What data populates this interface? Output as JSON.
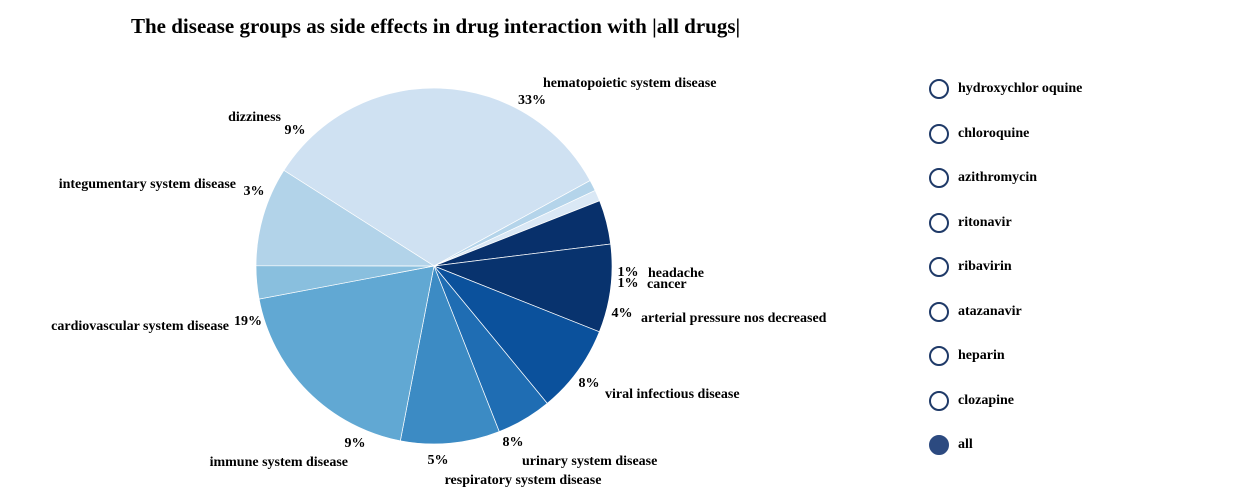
{
  "chart_data": {
    "type": "pie",
    "title": "The disease groups as side effects in drug interaction with |all drugs|",
    "slices": [
      {
        "label": "hematopoietic system disease",
        "value": 33,
        "pct_label": "33%",
        "color": "#cfe1f2"
      },
      {
        "label": "headache",
        "value": 1,
        "pct_label": "1%",
        "color": "#b4d4ea"
      },
      {
        "label": "cancer",
        "value": 1,
        "pct_label": "1%",
        "color": "#dae8f5"
      },
      {
        "label": "arterial pressure nos decreased",
        "value": 4,
        "pct_label": "4%",
        "color": "#08306b"
      },
      {
        "label": "viral infectious disease",
        "value": 8,
        "pct_label": "8%",
        "color": "#08336e"
      },
      {
        "label": "urinary system disease",
        "value": 8,
        "pct_label": "8%",
        "color": "#0b519c"
      },
      {
        "label": "respiratory system disease",
        "value": 5,
        "pct_label": "5%",
        "color": "#1f6db3"
      },
      {
        "label": "immune system disease",
        "value": 9,
        "pct_label": "9%",
        "color": "#3c8bc4"
      },
      {
        "label": "cardiovascular system disease",
        "value": 19,
        "pct_label": "19%",
        "color": "#61a8d3"
      },
      {
        "label": "integumentary system disease",
        "value": 3,
        "pct_label": "3%",
        "color": "#89bfde"
      },
      {
        "label": "dizziness",
        "value": 9,
        "pct_label": "9%",
        "color": "#b2d3e9"
      }
    ]
  },
  "legend": {
    "items": [
      {
        "label": "hydroxychlor oquine",
        "selected": false
      },
      {
        "label": "chloroquine",
        "selected": false
      },
      {
        "label": "azithromycin",
        "selected": false
      },
      {
        "label": "ritonavir",
        "selected": false
      },
      {
        "label": "ribavirin",
        "selected": false
      },
      {
        "label": "atazanavir",
        "selected": false
      },
      {
        "label": "heparin",
        "selected": false
      },
      {
        "label": "clozapine",
        "selected": false
      },
      {
        "label": "all",
        "selected": true
      }
    ]
  }
}
